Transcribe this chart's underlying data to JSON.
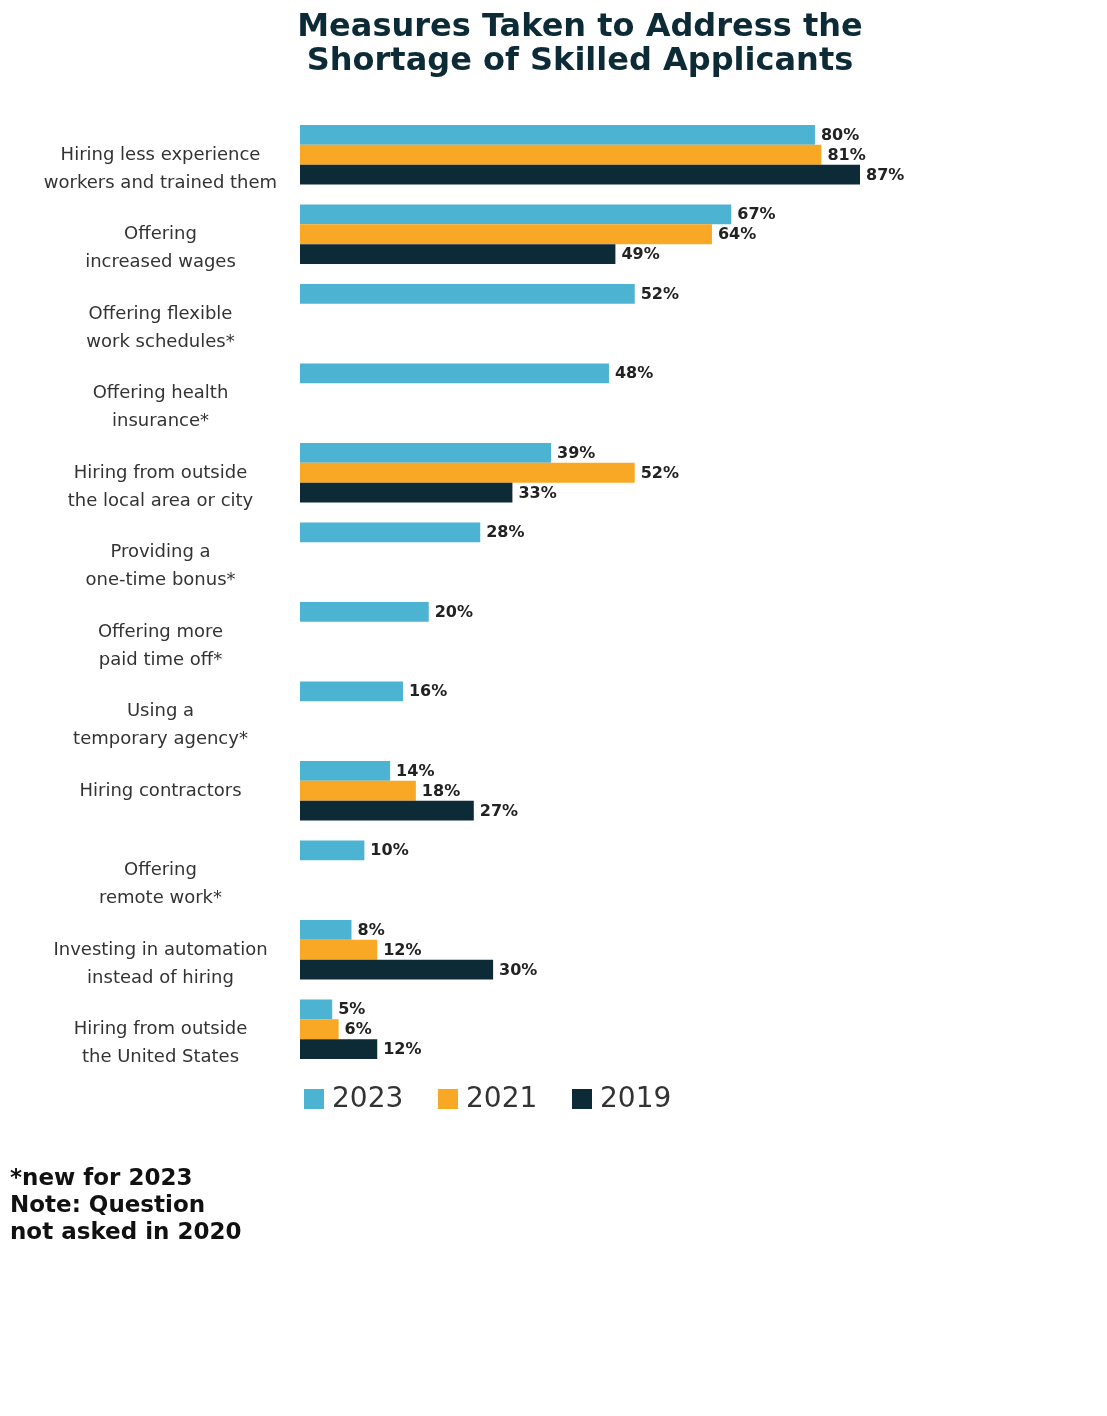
{
  "chart_data": {
    "type": "bar",
    "orientation": "horizontal",
    "title": "Measures Taken to Address the Shortage of Skilled Applicants",
    "categories": [
      "Hiring less experience workers and trained them",
      "Offering increased wages",
      "Offering flexible work schedules*",
      "Offering health insurance*",
      "Hiring from outside the local area or city",
      "Providing a one-time bonus*",
      "Offering more paid time off*",
      "Using a temporary agency*",
      "Hiring contractors",
      "Offering remote work*",
      "Investing in automation instead of hiring",
      "Hiring from outside the United States"
    ],
    "series": [
      {
        "name": "2023",
        "color": "#4db3d3",
        "values": [
          80,
          67,
          52,
          48,
          39,
          28,
          20,
          16,
          14,
          10,
          8,
          5
        ],
        "value_labels": [
          "80%",
          "67%",
          "52%",
          "48%",
          "39%",
          "28%",
          "20%",
          "16%",
          "14%",
          "10%",
          "8%",
          "5%"
        ]
      },
      {
        "name": "2021",
        "color": "#f9a825",
        "values": [
          81,
          64,
          null,
          null,
          52,
          null,
          null,
          null,
          18,
          null,
          12,
          6
        ],
        "value_labels": [
          "81%",
          "64%",
          null,
          null,
          "52%",
          null,
          null,
          null,
          "18%",
          null,
          "12%",
          "6%"
        ]
      },
      {
        "name": "2019",
        "color": "#0d2b36",
        "values": [
          87,
          49,
          null,
          null,
          33,
          null,
          null,
          null,
          27,
          null,
          30,
          12
        ],
        "value_labels": [
          "87%",
          "49%",
          null,
          null,
          "33%",
          null,
          null,
          null,
          "27%",
          null,
          "30%",
          "12%"
        ]
      }
    ],
    "legend": "bottom",
    "tick_labels": "y",
    "grid": false,
    "annotations": [
      "*new for 2023",
      "Note: Question not asked in 2020"
    ]
  }
}
